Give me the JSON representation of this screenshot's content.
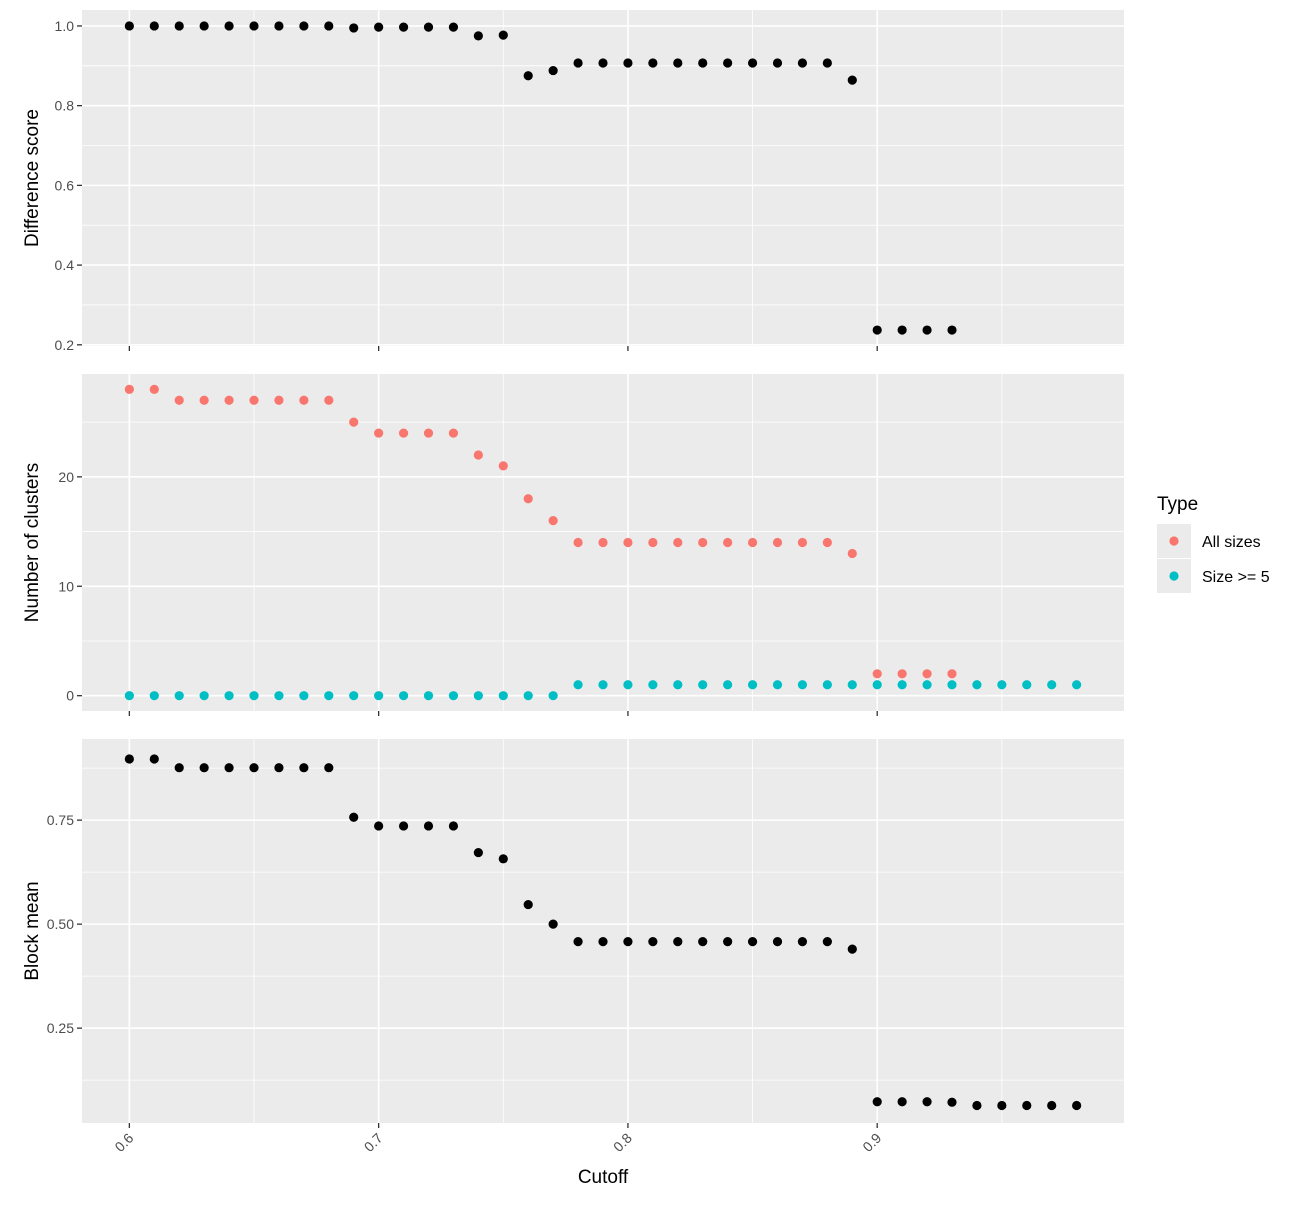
{
  "chart_data": {
    "type": "scatter",
    "xlabel": "Cutoff",
    "x_ticks": [
      0.6,
      0.7,
      0.8,
      0.9
    ],
    "x_tick_labels": [
      "0.6",
      "0.7",
      "0.8",
      "0.9"
    ],
    "xlim": [
      0.581,
      0.999
    ],
    "grid": true,
    "legend": {
      "title": "Type",
      "placement": "right",
      "entries": [
        {
          "label": "All sizes",
          "color": "#F8766D"
        },
        {
          "label": "Size >= 5",
          "color": "#00BFC4"
        }
      ]
    },
    "panels": [
      {
        "ylabel": "Difference score",
        "ylim": [
          0.197,
          1.04
        ],
        "y_ticks": [
          0.2,
          0.4,
          0.6,
          0.8,
          1.0
        ],
        "y_tick_labels": [
          "0.2",
          "0.4",
          "0.6",
          "0.8",
          "1.0"
        ],
        "series": [
          {
            "color": "#000000",
            "x": [
              0.6,
              0.61,
              0.62,
              0.63,
              0.64,
              0.65,
              0.66,
              0.67,
              0.68,
              0.69,
              0.7,
              0.71,
              0.72,
              0.73,
              0.74,
              0.75,
              0.76,
              0.77,
              0.78,
              0.79,
              0.8,
              0.81,
              0.82,
              0.83,
              0.84,
              0.85,
              0.86,
              0.87,
              0.88,
              0.89,
              0.9,
              0.91,
              0.92,
              0.93
            ],
            "y": [
              1.0,
              1.0,
              1.0,
              1.0,
              1.0,
              1.0,
              1.0,
              1.0,
              1.0,
              0.995,
              0.997,
              0.997,
              0.997,
              0.997,
              0.975,
              0.977,
              0.875,
              0.888,
              0.907,
              0.907,
              0.907,
              0.907,
              0.907,
              0.907,
              0.907,
              0.907,
              0.907,
              0.907,
              0.907,
              0.864,
              0.237,
              0.237,
              0.237,
              0.237
            ]
          }
        ]
      },
      {
        "ylabel": "Number of clusters",
        "ylim": [
          -1.4,
          29.4
        ],
        "y_ticks": [
          0,
          10,
          20
        ],
        "y_tick_labels": [
          "0",
          "10",
          "20"
        ],
        "series": [
          {
            "name": "All sizes",
            "color": "#F8766D",
            "x": [
              0.6,
              0.61,
              0.62,
              0.63,
              0.64,
              0.65,
              0.66,
              0.67,
              0.68,
              0.69,
              0.7,
              0.71,
              0.72,
              0.73,
              0.74,
              0.75,
              0.76,
              0.77,
              0.78,
              0.79,
              0.8,
              0.81,
              0.82,
              0.83,
              0.84,
              0.85,
              0.86,
              0.87,
              0.88,
              0.89,
              0.9,
              0.91,
              0.92,
              0.93
            ],
            "y": [
              28,
              28,
              27,
              27,
              27,
              27,
              27,
              27,
              27,
              25,
              24,
              24,
              24,
              24,
              22,
              21,
              18,
              16,
              14,
              14,
              14,
              14,
              14,
              14,
              14,
              14,
              14,
              14,
              14,
              13,
              2,
              2,
              2,
              2
            ]
          },
          {
            "name": "Size >= 5",
            "color": "#00BFC4",
            "x": [
              0.6,
              0.61,
              0.62,
              0.63,
              0.64,
              0.65,
              0.66,
              0.67,
              0.68,
              0.69,
              0.7,
              0.71,
              0.72,
              0.73,
              0.74,
              0.75,
              0.76,
              0.77,
              0.78,
              0.79,
              0.8,
              0.81,
              0.82,
              0.83,
              0.84,
              0.85,
              0.86,
              0.87,
              0.88,
              0.89,
              0.9,
              0.91,
              0.92,
              0.93,
              0.94,
              0.95,
              0.96,
              0.97,
              0.98
            ],
            "y": [
              0,
              0,
              0,
              0,
              0,
              0,
              0,
              0,
              0,
              0,
              0,
              0,
              0,
              0,
              0,
              0,
              0,
              0,
              1,
              1,
              1,
              1,
              1,
              1,
              1,
              1,
              1,
              1,
              1,
              1,
              1,
              1,
              1,
              1,
              1,
              1,
              1,
              1,
              1
            ]
          }
        ]
      },
      {
        "ylabel": "Block mean",
        "ylim": [
          0.022,
          0.945
        ],
        "y_ticks": [
          0.25,
          0.5,
          0.75
        ],
        "y_tick_labels": [
          "0.25",
          "0.50",
          "0.75"
        ],
        "series": [
          {
            "color": "#000000",
            "x": [
              0.6,
              0.61,
              0.62,
              0.63,
              0.64,
              0.65,
              0.66,
              0.67,
              0.68,
              0.69,
              0.7,
              0.71,
              0.72,
              0.73,
              0.74,
              0.75,
              0.76,
              0.77,
              0.78,
              0.79,
              0.8,
              0.81,
              0.82,
              0.83,
              0.84,
              0.85,
              0.86,
              0.87,
              0.88,
              0.89,
              0.9,
              0.91,
              0.92,
              0.93,
              0.94,
              0.95,
              0.96,
              0.97,
              0.98
            ],
            "y": [
              0.897,
              0.897,
              0.876,
              0.876,
              0.876,
              0.876,
              0.876,
              0.876,
              0.876,
              0.757,
              0.736,
              0.736,
              0.736,
              0.736,
              0.672,
              0.657,
              0.547,
              0.5,
              0.458,
              0.458,
              0.458,
              0.458,
              0.458,
              0.458,
              0.458,
              0.458,
              0.458,
              0.458,
              0.458,
              0.44,
              0.073,
              0.073,
              0.073,
              0.072,
              0.064,
              0.064,
              0.064,
              0.064,
              0.064
            ]
          }
        ]
      }
    ]
  }
}
